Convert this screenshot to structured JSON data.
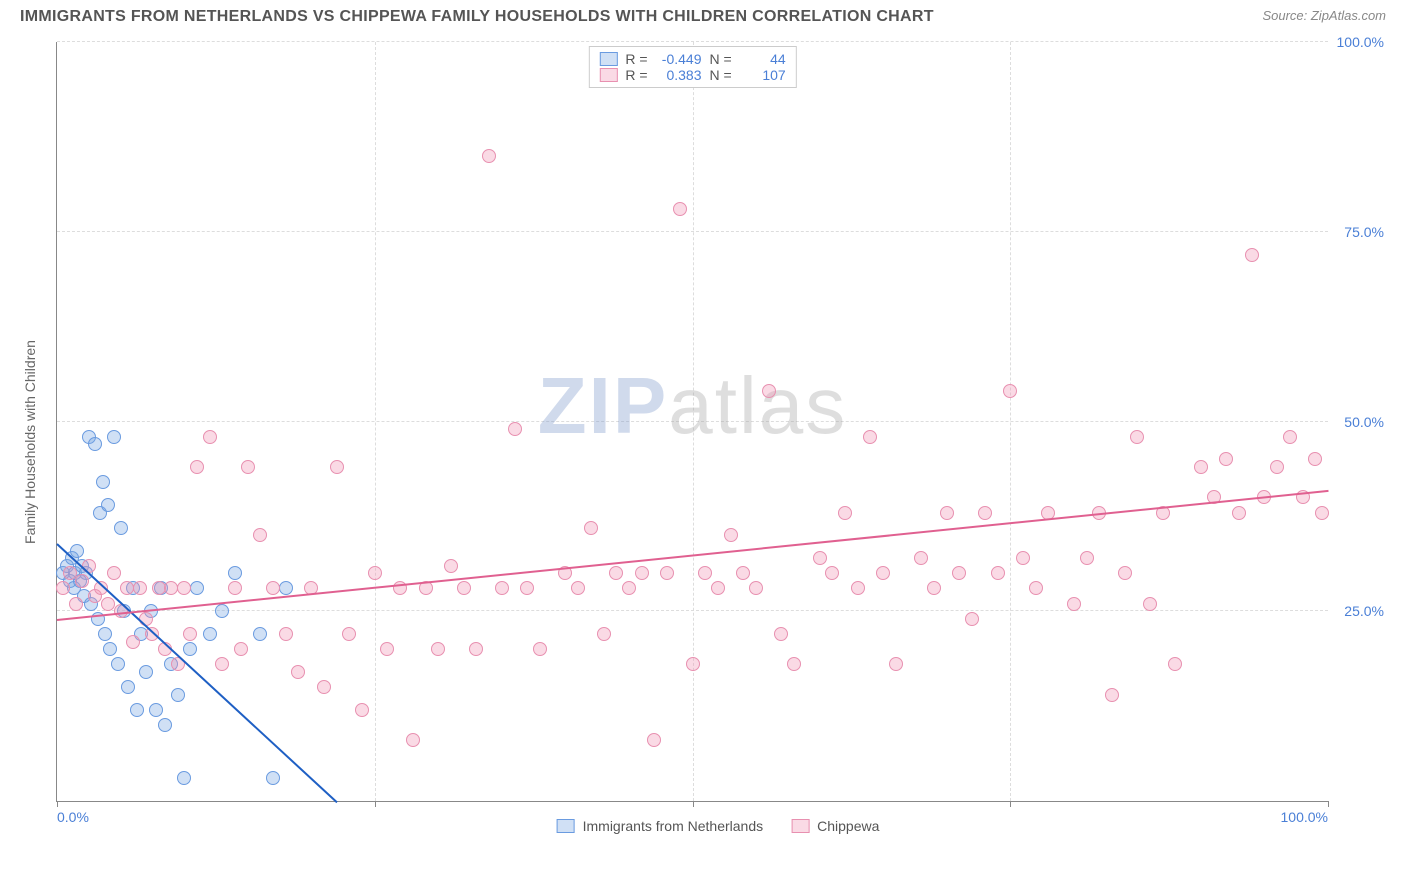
{
  "header": {
    "title": "IMMIGRANTS FROM NETHERLANDS VS CHIPPEWA FAMILY HOUSEHOLDS WITH CHILDREN CORRELATION CHART",
    "source": "Source: ZipAtlas.com"
  },
  "watermark": {
    "zip": "ZIP",
    "atlas": "atlas"
  },
  "chart": {
    "type": "scatter",
    "yaxis_label": "Family Households with Children",
    "xlim": [
      0,
      100
    ],
    "ylim": [
      0,
      100
    ],
    "xtick_labels": {
      "0": "0.0%",
      "100": "100.0%"
    },
    "ytick_labels": {
      "25": "25.0%",
      "50": "50.0%",
      "75": "75.0%",
      "100": "100.0%"
    },
    "xtick_marks": [
      0,
      25,
      50,
      75,
      100
    ],
    "grid_y": [
      25,
      50,
      75,
      100
    ],
    "grid_x": [
      25,
      50,
      75
    ],
    "grid_color": "#dddddd",
    "background_color": "#ffffff",
    "axis_color": "#888888",
    "tick_label_color": "#4a7fd6",
    "label_fontsize": 14,
    "title_fontsize": 16,
    "marker_radius": 7,
    "marker_border_width": 1.5,
    "series": [
      {
        "name": "Immigrants from Netherlands",
        "fill": "rgba(120,165,225,0.35)",
        "stroke": "#6a9be0",
        "trend_color": "#1e5fc4",
        "r_value": "-0.449",
        "n_value": "44",
        "trend": {
          "x1": 0,
          "y1": 34,
          "x2": 22,
          "y2": 0
        },
        "points": [
          [
            0.5,
            30
          ],
          [
            0.8,
            31
          ],
          [
            1.0,
            29
          ],
          [
            1.2,
            32
          ],
          [
            1.3,
            28
          ],
          [
            1.4,
            30
          ],
          [
            1.6,
            33
          ],
          [
            1.8,
            29
          ],
          [
            2.0,
            31
          ],
          [
            2.1,
            27
          ],
          [
            2.3,
            30
          ],
          [
            2.5,
            48
          ],
          [
            2.7,
            26
          ],
          [
            3.0,
            47
          ],
          [
            3.2,
            24
          ],
          [
            3.4,
            38
          ],
          [
            3.6,
            42
          ],
          [
            3.8,
            22
          ],
          [
            4.0,
            39
          ],
          [
            4.2,
            20
          ],
          [
            4.5,
            48
          ],
          [
            4.8,
            18
          ],
          [
            5.0,
            36
          ],
          [
            5.3,
            25
          ],
          [
            5.6,
            15
          ],
          [
            6.0,
            28
          ],
          [
            6.3,
            12
          ],
          [
            6.6,
            22
          ],
          [
            7.0,
            17
          ],
          [
            7.4,
            25
          ],
          [
            7.8,
            12
          ],
          [
            8.2,
            28
          ],
          [
            8.5,
            10
          ],
          [
            9.0,
            18
          ],
          [
            9.5,
            14
          ],
          [
            10.0,
            3
          ],
          [
            10.5,
            20
          ],
          [
            11.0,
            28
          ],
          [
            12.0,
            22
          ],
          [
            13.0,
            25
          ],
          [
            14.0,
            30
          ],
          [
            16.0,
            22
          ],
          [
            17.0,
            3
          ],
          [
            18.0,
            28
          ]
        ]
      },
      {
        "name": "Chippewa",
        "fill": "rgba(240,150,180,0.35)",
        "stroke": "#e890b0",
        "trend_color": "#e06090",
        "r_value": "0.383",
        "n_value": "107",
        "trend": {
          "x1": 0,
          "y1": 24,
          "x2": 100,
          "y2": 41
        },
        "points": [
          [
            0.5,
            28
          ],
          [
            1.0,
            30
          ],
          [
            1.5,
            26
          ],
          [
            2.0,
            29
          ],
          [
            2.5,
            31
          ],
          [
            3.0,
            27
          ],
          [
            3.5,
            28
          ],
          [
            4.0,
            26
          ],
          [
            4.5,
            30
          ],
          [
            5.0,
            25
          ],
          [
            5.5,
            28
          ],
          [
            6.0,
            21
          ],
          [
            6.5,
            28
          ],
          [
            7.0,
            24
          ],
          [
            7.5,
            22
          ],
          [
            8.0,
            28
          ],
          [
            8.5,
            20
          ],
          [
            9.0,
            28
          ],
          [
            9.5,
            18
          ],
          [
            10.0,
            28
          ],
          [
            10.5,
            22
          ],
          [
            11.0,
            44
          ],
          [
            12.0,
            48
          ],
          [
            13.0,
            18
          ],
          [
            14.0,
            28
          ],
          [
            14.5,
            20
          ],
          [
            15.0,
            44
          ],
          [
            16.0,
            35
          ],
          [
            17.0,
            28
          ],
          [
            18.0,
            22
          ],
          [
            19.0,
            17
          ],
          [
            20.0,
            28
          ],
          [
            21.0,
            15
          ],
          [
            22.0,
            44
          ],
          [
            23.0,
            22
          ],
          [
            24.0,
            12
          ],
          [
            25.0,
            30
          ],
          [
            26.0,
            20
          ],
          [
            27.0,
            28
          ],
          [
            28.0,
            8
          ],
          [
            29.0,
            28
          ],
          [
            30.0,
            20
          ],
          [
            31.0,
            31
          ],
          [
            32.0,
            28
          ],
          [
            33.0,
            20
          ],
          [
            34.0,
            85
          ],
          [
            35.0,
            28
          ],
          [
            36.0,
            49
          ],
          [
            37.0,
            28
          ],
          [
            38.0,
            20
          ],
          [
            40.0,
            30
          ],
          [
            41.0,
            28
          ],
          [
            42.0,
            36
          ],
          [
            43.0,
            22
          ],
          [
            44.0,
            30
          ],
          [
            45.0,
            28
          ],
          [
            46.0,
            30
          ],
          [
            47.0,
            8
          ],
          [
            48.0,
            30
          ],
          [
            49.0,
            78
          ],
          [
            50.0,
            18
          ],
          [
            51.0,
            30
          ],
          [
            52.0,
            28
          ],
          [
            53.0,
            35
          ],
          [
            54.0,
            30
          ],
          [
            55.0,
            28
          ],
          [
            56.0,
            54
          ],
          [
            57.0,
            22
          ],
          [
            58.0,
            18
          ],
          [
            60.0,
            32
          ],
          [
            61.0,
            30
          ],
          [
            62.0,
            38
          ],
          [
            63.0,
            28
          ],
          [
            64.0,
            48
          ],
          [
            65.0,
            30
          ],
          [
            66.0,
            18
          ],
          [
            68.0,
            32
          ],
          [
            69.0,
            28
          ],
          [
            70.0,
            38
          ],
          [
            71.0,
            30
          ],
          [
            72.0,
            24
          ],
          [
            73.0,
            38
          ],
          [
            74.0,
            30
          ],
          [
            75.0,
            54
          ],
          [
            76.0,
            32
          ],
          [
            77.0,
            28
          ],
          [
            78.0,
            38
          ],
          [
            80.0,
            26
          ],
          [
            81.0,
            32
          ],
          [
            82.0,
            38
          ],
          [
            83.0,
            14
          ],
          [
            84.0,
            30
          ],
          [
            85.0,
            48
          ],
          [
            86.0,
            26
          ],
          [
            87.0,
            38
          ],
          [
            88.0,
            18
          ],
          [
            90.0,
            44
          ],
          [
            91.0,
            40
          ],
          [
            92.0,
            45
          ],
          [
            93.0,
            38
          ],
          [
            94.0,
            72
          ],
          [
            95.0,
            40
          ],
          [
            96.0,
            44
          ],
          [
            97.0,
            48
          ],
          [
            98.0,
            40
          ],
          [
            99.0,
            45
          ],
          [
            99.5,
            38
          ]
        ]
      }
    ]
  },
  "legend_bottom": {
    "series1_label": "Immigrants from Netherlands",
    "series2_label": "Chippewa"
  },
  "legend_top": {
    "r_label": "R =",
    "n_label": "N ="
  }
}
